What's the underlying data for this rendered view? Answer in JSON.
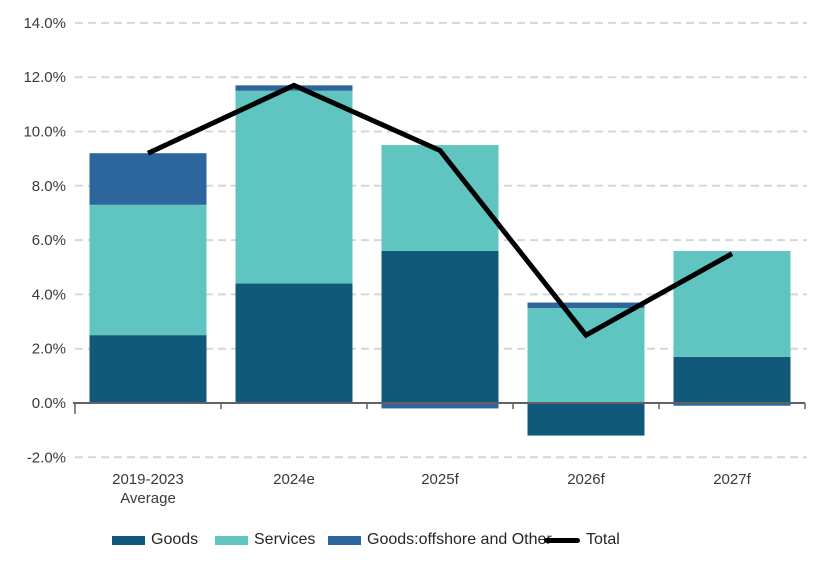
{
  "chart_data": {
    "type": "bar",
    "subtype": "stacked-bar-with-line-overlay",
    "title": "",
    "xlabel": "",
    "ylabel": "",
    "categories": [
      "2019-2023 Average",
      "2024e",
      "2025f",
      "2026f",
      "2027f"
    ],
    "category_lines": [
      [
        "2019-2023",
        "Average"
      ],
      [
        "2024e"
      ],
      [
        "2025f"
      ],
      [
        "2026f"
      ],
      [
        "2027f"
      ]
    ],
    "series": [
      {
        "name": "Goods",
        "type": "bar",
        "color": "#10597A",
        "values": [
          2.5,
          4.4,
          5.6,
          -1.2,
          1.7
        ]
      },
      {
        "name": "Services",
        "type": "bar",
        "color": "#60C5C1",
        "values": [
          4.8,
          7.1,
          3.9,
          3.5,
          3.9
        ]
      },
      {
        "name": "Goods:offshore and Other",
        "type": "bar",
        "color": "#2D669C",
        "values": [
          1.9,
          0.2,
          -0.2,
          0.2,
          -0.1
        ]
      },
      {
        "name": "Total",
        "type": "line",
        "color": "#000000",
        "values": [
          9.2,
          11.7,
          9.3,
          2.5,
          5.5
        ]
      }
    ],
    "ylim": [
      -2,
      14
    ],
    "ytick_step": 2,
    "ytick_labels": [
      "14.0%",
      "12.0%",
      "10.0%",
      "8.0%",
      "6.0%",
      "4.0%",
      "2.0%",
      "0.0%",
      "-2.0%"
    ],
    "grid": "horizontal-dashed",
    "gridline_color": "#D6D6D6",
    "axis_line_color": "#616161",
    "legend_position": "bottom"
  }
}
